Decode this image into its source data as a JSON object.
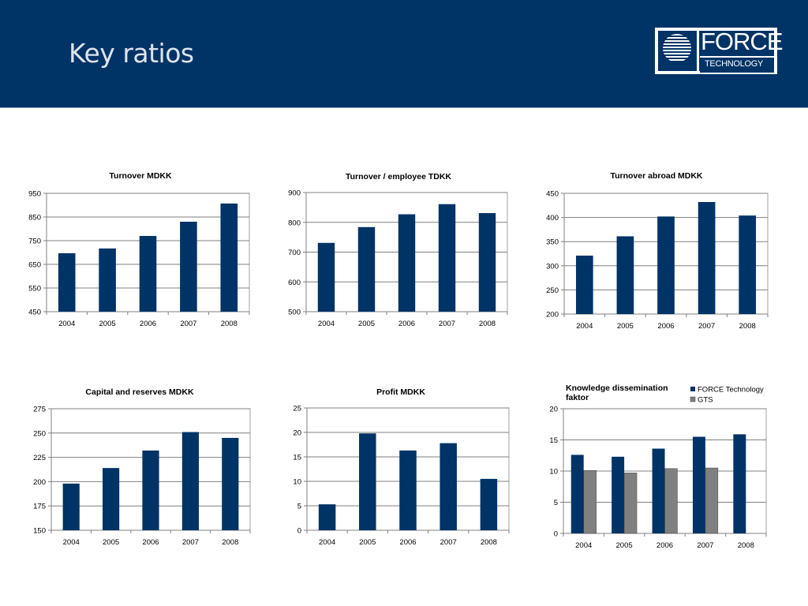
{
  "header": {
    "title": "Key ratios",
    "logo_primary": "FORCE",
    "logo_secondary": "TECHNOLOGY",
    "background_color": "#003366"
  },
  "colors": {
    "primary_bar": "#003366",
    "secondary_bar": "#808080",
    "grid": "#808080"
  },
  "chart_data": [
    {
      "id": "turnover",
      "type": "bar",
      "title": "Turnover MDKK",
      "categories": [
        "2004",
        "2005",
        "2006",
        "2007",
        "2008"
      ],
      "values": [
        697,
        717,
        770,
        830,
        907
      ],
      "ylim": [
        450,
        950
      ],
      "yticks": [
        450,
        550,
        650,
        750,
        850,
        950
      ],
      "xlabel": "",
      "ylabel": "",
      "grid": true
    },
    {
      "id": "turnover-per-employee",
      "type": "bar",
      "title": "Turnover / employee TDKK",
      "categories": [
        "2004",
        "2005",
        "2006",
        "2007",
        "2008"
      ],
      "values": [
        731,
        784,
        827,
        861,
        831
      ],
      "ylim": [
        500,
        900
      ],
      "yticks": [
        500,
        600,
        700,
        800,
        900
      ],
      "xlabel": "",
      "ylabel": "",
      "grid": true
    },
    {
      "id": "turnover-abroad",
      "type": "bar",
      "title": "Turnover abroad MDKK",
      "categories": [
        "2004",
        "2005",
        "2006",
        "2007",
        "2008"
      ],
      "values": [
        321,
        361,
        402,
        432,
        404
      ],
      "ylim": [
        200,
        450
      ],
      "yticks": [
        200,
        250,
        300,
        350,
        400,
        450
      ],
      "xlabel": "",
      "ylabel": "",
      "grid": true
    },
    {
      "id": "capital-reserves",
      "type": "bar",
      "title": "Capital and reserves MDKK",
      "categories": [
        "2004",
        "2005",
        "2006",
        "2007",
        "2008"
      ],
      "values": [
        198,
        214,
        232,
        251,
        245
      ],
      "ylim": [
        150,
        275
      ],
      "yticks": [
        150,
        175,
        200,
        225,
        250,
        275
      ],
      "xlabel": "",
      "ylabel": "",
      "grid": true
    },
    {
      "id": "profit",
      "type": "bar",
      "title": "Profit MDKK",
      "categories": [
        "2004",
        "2005",
        "2006",
        "2007",
        "2008"
      ],
      "values": [
        5.3,
        19.8,
        16.3,
        17.8,
        10.5
      ],
      "ylim": [
        0,
        25
      ],
      "yticks": [
        0,
        5,
        10,
        15,
        20,
        25
      ],
      "xlabel": "",
      "ylabel": "",
      "grid": true
    },
    {
      "id": "knowledge-dissemination",
      "type": "bar",
      "title": "Knowledge dissemination faktor",
      "title_lines": [
        "Knowledge dissemination",
        "faktor"
      ],
      "categories": [
        "2004",
        "2005",
        "2006",
        "2007",
        "2008"
      ],
      "series": [
        {
          "name": "FORCE Technology",
          "values": [
            12.6,
            12.3,
            13.6,
            15.5,
            15.9
          ]
        },
        {
          "name": "GTS",
          "values": [
            10.1,
            9.7,
            10.4,
            10.5,
            null
          ]
        }
      ],
      "ylim": [
        0,
        20
      ],
      "yticks": [
        0,
        5,
        10,
        15,
        20
      ],
      "legend": "top-right",
      "xlabel": "",
      "ylabel": "",
      "grid": true
    }
  ]
}
